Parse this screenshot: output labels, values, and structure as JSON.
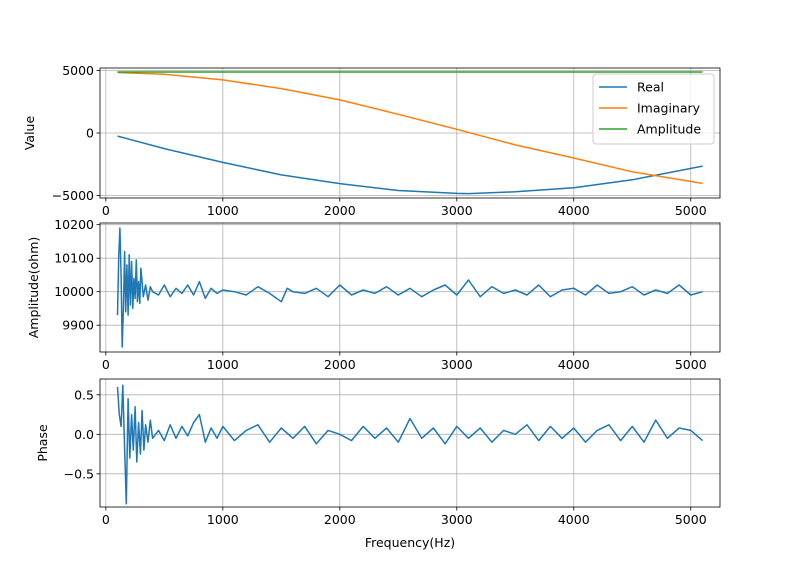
{
  "figure": {
    "background": "#ffffff"
  },
  "chart_data": [
    {
      "type": "line",
      "ylabel": "Value",
      "xlabel": "",
      "xlim": [
        -50,
        5250
      ],
      "ylim": [
        -5200,
        5200
      ],
      "xticks": [
        0,
        1000,
        2000,
        3000,
        4000,
        5000
      ],
      "yticks": [
        -5000,
        0,
        5000
      ],
      "xtick_labels": [
        "0",
        "1000",
        "2000",
        "3000",
        "4000",
        "5000"
      ],
      "ytick_labels": [
        "−5000",
        "0",
        "5000"
      ],
      "grid": true,
      "legend": "upper-right",
      "series": [
        {
          "name": "Real",
          "color": "#1f77b4",
          "x": [
            100,
            500,
            1000,
            1500,
            2000,
            2500,
            3000,
            3100,
            3500,
            4000,
            4500,
            5100
          ],
          "values": [
            -250,
            -1250,
            -2350,
            -3350,
            -4050,
            -4600,
            -4830,
            -4850,
            -4700,
            -4380,
            -3740,
            -2650
          ]
        },
        {
          "name": "Imaginary",
          "color": "#ff7f0e",
          "x": [
            100,
            500,
            1000,
            1500,
            2000,
            2500,
            3000,
            3500,
            4000,
            4500,
            5100
          ],
          "values": [
            4840,
            4700,
            4250,
            3550,
            2650,
            1500,
            300,
            -950,
            -2000,
            -3100,
            -4030
          ]
        },
        {
          "name": "Amplitude",
          "color": "#2ca02c",
          "x": [
            100,
            5100
          ],
          "values": [
            4880,
            4880
          ]
        }
      ]
    },
    {
      "type": "line",
      "ylabel": "Amplitude(ohm)",
      "xlabel": "",
      "xlim": [
        -50,
        5250
      ],
      "ylim": [
        9820,
        10205
      ],
      "xticks": [
        0,
        1000,
        2000,
        3000,
        4000,
        5000
      ],
      "yticks": [
        9900,
        10000,
        10100,
        10200
      ],
      "xtick_labels": [
        "0",
        "1000",
        "2000",
        "3000",
        "4000",
        "5000"
      ],
      "ytick_labels": [
        "9900",
        "10000",
        "10100",
        "10200"
      ],
      "grid": true,
      "series": [
        {
          "name": "",
          "color": "#1f77b4",
          "x": [
            100,
            110,
            120,
            130,
            140,
            150,
            160,
            170,
            180,
            190,
            200,
            210,
            220,
            230,
            240,
            250,
            260,
            270,
            280,
            290,
            300,
            320,
            340,
            360,
            380,
            400,
            450,
            500,
            550,
            600,
            650,
            700,
            750,
            800,
            850,
            900,
            950,
            1000,
            1100,
            1200,
            1300,
            1400,
            1500,
            1550,
            1600,
            1700,
            1800,
            1900,
            2000,
            2100,
            2200,
            2300,
            2400,
            2500,
            2600,
            2700,
            2800,
            2900,
            3000,
            3100,
            3200,
            3300,
            3400,
            3500,
            3600,
            3700,
            3800,
            3900,
            4000,
            4100,
            4200,
            4300,
            4400,
            4500,
            4600,
            4700,
            4800,
            4900,
            5000,
            5100
          ],
          "values": [
            9930,
            10100,
            10190,
            10050,
            9835,
            9950,
            10120,
            9940,
            10080,
            9930,
            10110,
            9960,
            10090,
            9950,
            10040,
            9980,
            10095,
            9970,
            10030,
            9965,
            10070,
            9985,
            10020,
            9975,
            10015,
            10000,
            9990,
            10020,
            9985,
            10010,
            9995,
            10020,
            9990,
            10030,
            9980,
            10010,
            9995,
            10005,
            10000,
            9990,
            10015,
            9995,
            9970,
            10010,
            10000,
            9995,
            10010,
            9985,
            10020,
            9990,
            10005,
            9995,
            10015,
            9990,
            10010,
            9985,
            10005,
            10020,
            9990,
            10035,
            9985,
            10015,
            9995,
            10005,
            9990,
            10020,
            9985,
            10005,
            10010,
            9990,
            10020,
            9995,
            10000,
            10015,
            9990,
            10005,
            9995,
            10020,
            9990,
            10000
          ]
        }
      ]
    },
    {
      "type": "line",
      "ylabel": "Phase",
      "xlabel": "Frequency(Hz)",
      "xlim": [
        -50,
        5250
      ],
      "ylim": [
        -0.92,
        0.7
      ],
      "xticks": [
        0,
        1000,
        2000,
        3000,
        4000,
        5000
      ],
      "yticks": [
        -0.5,
        0.0,
        0.5
      ],
      "xtick_labels": [
        "0",
        "1000",
        "2000",
        "3000",
        "4000",
        "5000"
      ],
      "ytick_labels": [
        "−0.5",
        "0.0",
        "0.5"
      ],
      "grid": true,
      "series": [
        {
          "name": "",
          "color": "#1f77b4",
          "x": [
            100,
            115,
            130,
            145,
            160,
            175,
            190,
            205,
            220,
            235,
            250,
            265,
            280,
            295,
            310,
            325,
            340,
            360,
            380,
            400,
            450,
            500,
            550,
            600,
            650,
            700,
            750,
            800,
            850,
            900,
            950,
            1000,
            1100,
            1200,
            1300,
            1400,
            1500,
            1600,
            1700,
            1800,
            1900,
            2000,
            2100,
            2200,
            2300,
            2400,
            2500,
            2600,
            2700,
            2800,
            2900,
            3000,
            3100,
            3200,
            3300,
            3400,
            3500,
            3600,
            3700,
            3800,
            3900,
            4000,
            4100,
            4200,
            4300,
            4400,
            4500,
            4600,
            4700,
            4800,
            4900,
            5000,
            5100
          ],
          "values": [
            0.6,
            0.25,
            0.1,
            0.62,
            -0.18,
            -0.88,
            0.45,
            -0.3,
            0.25,
            -0.2,
            0.35,
            -0.35,
            0.15,
            -0.25,
            0.3,
            -0.2,
            0.12,
            -0.1,
            0.18,
            -0.05,
            0.05,
            -0.08,
            0.12,
            -0.05,
            0.1,
            -0.02,
            0.15,
            0.25,
            -0.1,
            0.08,
            -0.05,
            0.1,
            -0.08,
            0.05,
            0.12,
            -0.1,
            0.08,
            -0.05,
            0.1,
            -0.12,
            0.05,
            0.0,
            -0.08,
            0.1,
            -0.05,
            0.08,
            -0.1,
            0.2,
            -0.05,
            0.08,
            -0.12,
            0.1,
            -0.05,
            0.08,
            -0.1,
            0.05,
            0.0,
            0.12,
            -0.08,
            0.1,
            -0.05,
            0.08,
            -0.1,
            0.05,
            0.12,
            -0.08,
            0.1,
            -0.1,
            0.18,
            -0.05,
            0.08,
            0.05,
            -0.08
          ]
        }
      ]
    }
  ]
}
